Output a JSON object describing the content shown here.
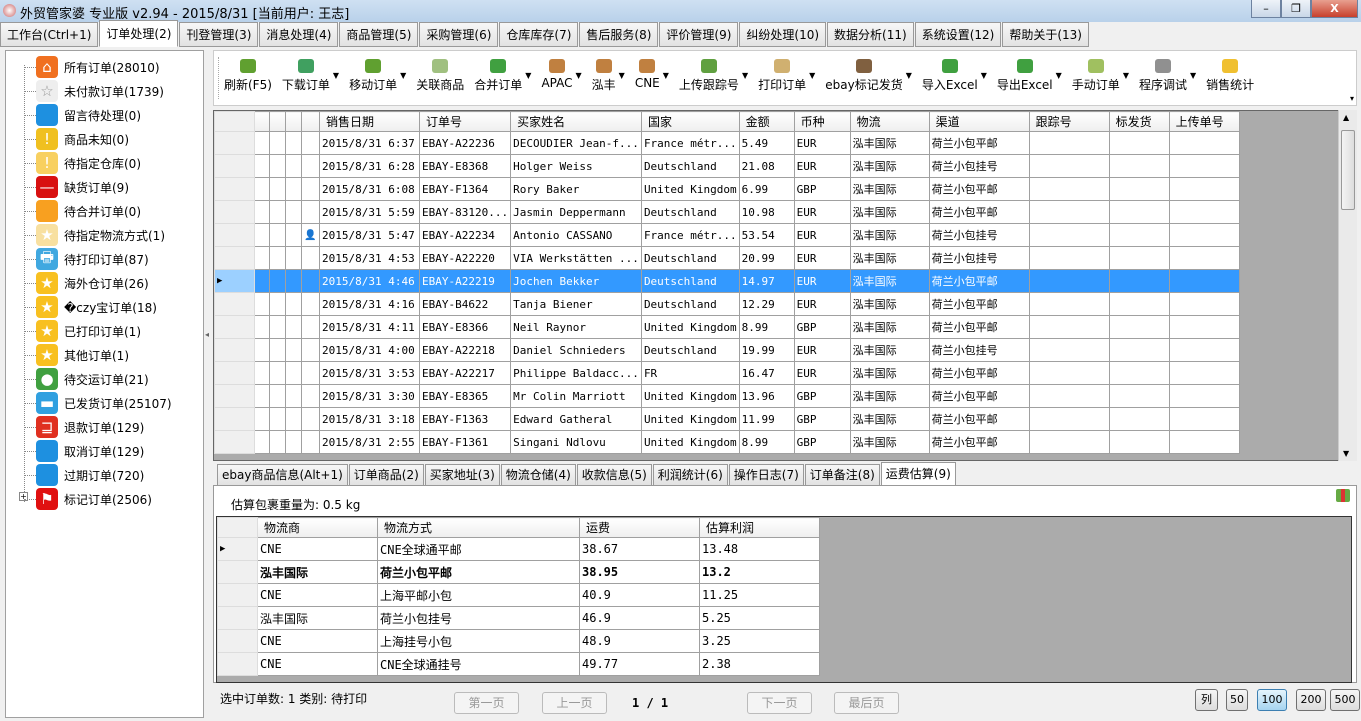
{
  "window": {
    "title": "外贸管家婆 专业版 v2.94 - 2015/8/31 [当前用户: 王志]",
    "minimize": "–",
    "maximize": "❐",
    "close": "X"
  },
  "tabs": [
    "工作台(Ctrl+1)",
    "订单处理(2)",
    "刊登管理(3)",
    "消息处理(4)",
    "商品管理(5)",
    "采购管理(6)",
    "仓库库存(7)",
    "售后服务(8)",
    "评价管理(9)",
    "纠纷处理(10)",
    "数据分析(11)",
    "系统设置(12)",
    "帮助关于(13)"
  ],
  "active_tab": 1,
  "sidebar": [
    {
      "label": "所有订单(28010)",
      "icon": "home-icon",
      "color": "#f07020",
      "glyph": "⌂"
    },
    {
      "label": "未付款订单(1739)",
      "icon": "star-outline-icon",
      "color": "#eeeeee",
      "glyph": "☆"
    },
    {
      "label": "留言待处理(0)",
      "icon": "speech-bubble-icon",
      "color": "#1e90e0",
      "glyph": ""
    },
    {
      "label": "商品未知(0)",
      "icon": "warning-icon",
      "color": "#f0c020",
      "glyph": "!"
    },
    {
      "label": "待指定仓库(0)",
      "icon": "warning-outline-icon",
      "color": "#f8d060",
      "glyph": "!"
    },
    {
      "label": "缺货订单(9)",
      "icon": "no-entry-icon",
      "color": "#d81010",
      "glyph": "—"
    },
    {
      "label": "待合并订单(0)",
      "icon": "folder-icon",
      "color": "#f8a020",
      "glyph": ""
    },
    {
      "label": "待指定物流方式(1)",
      "icon": "half-star-icon",
      "color": "#f8e0a0",
      "glyph": "★"
    },
    {
      "label": "待打印订单(87)",
      "icon": "printer-icon",
      "color": "#40a8e0",
      "glyph": "🖶"
    },
    {
      "label": "海外仓订单(26)",
      "icon": "star-icon",
      "color": "#f8c020",
      "glyph": "★"
    },
    {
      "label": "�czy宝订单(18)",
      "icon": "star-icon",
      "color": "#f8c020",
      "glyph": "★"
    },
    {
      "label": "已打印订单(1)",
      "icon": "star-icon",
      "color": "#f8c020",
      "glyph": "★"
    },
    {
      "label": "其他订单(1)",
      "icon": "star-icon",
      "color": "#f8c020",
      "glyph": "★"
    },
    {
      "label": "待交运订单(21)",
      "icon": "person-icon",
      "color": "#40a040",
      "glyph": "●"
    },
    {
      "label": "已发货订单(25107)",
      "icon": "truck-icon",
      "color": "#30a0e0",
      "glyph": "▬"
    },
    {
      "label": "退款订单(129)",
      "icon": "refund-icon",
      "color": "#e03020",
      "glyph": "⊒"
    },
    {
      "label": "取消订单(129)",
      "icon": "trash-icon",
      "color": "#1e90e0",
      "glyph": ""
    },
    {
      "label": "过期订单(720)",
      "icon": "trash-icon",
      "color": "#1e90e0",
      "glyph": ""
    },
    {
      "label": "标记订单(2506)",
      "icon": "flag-icon",
      "color": "#e01010",
      "glyph": "⚑"
    }
  ],
  "toolbar": [
    {
      "label": "刷新(F5)",
      "icon": "refresh-icon",
      "color": "#60a030",
      "dd": false
    },
    {
      "label": "下载订单",
      "icon": "globe-icon",
      "color": "#40a060",
      "dd": true
    },
    {
      "label": "移动订单",
      "icon": "arrow-right-icon",
      "color": "#60a030",
      "dd": true
    },
    {
      "label": "关联商品",
      "icon": "link-icon",
      "color": "#a0c080",
      "dd": false
    },
    {
      "label": "合并订单",
      "icon": "merge-icon",
      "color": "#40a040",
      "dd": true
    },
    {
      "label": "APAC",
      "icon": "truck-icon",
      "color": "#c08040",
      "dd": true
    },
    {
      "label": "泓丰",
      "icon": "truck-icon",
      "color": "#c08040",
      "dd": true
    },
    {
      "label": "CNE",
      "icon": "truck-icon",
      "color": "#c08040",
      "dd": true
    },
    {
      "label": "上传跟踪号",
      "icon": "upload-icon",
      "color": "#60a040",
      "dd": true
    },
    {
      "label": "打印订单",
      "icon": "clipboard-icon",
      "color": "#d0b070",
      "dd": true
    },
    {
      "label": "ebay标记发货",
      "icon": "truck-icon",
      "color": "#806040",
      "dd": true
    },
    {
      "label": "导入Excel",
      "icon": "excel-icon",
      "color": "#40a040",
      "dd": true
    },
    {
      "label": "导出Excel",
      "icon": "excel-icon",
      "color": "#40a040",
      "dd": true
    },
    {
      "label": "手动订单",
      "icon": "edit-icon",
      "color": "#a0c060",
      "dd": true
    },
    {
      "label": "程序调试",
      "icon": "gear-icon",
      "color": "#909090",
      "dd": true
    },
    {
      "label": "销售统计",
      "icon": "coins-icon",
      "color": "#f0c030",
      "dd": false
    }
  ],
  "grid": {
    "columns": [
      "",
      "",
      "",
      "",
      "销售日期",
      "订单号",
      "买家姓名",
      "国家",
      "金额",
      "币种",
      "物流",
      "渠道",
      "跟踪号",
      "标发货",
      "上传单号"
    ],
    "selected_row": 6,
    "rows": [
      [
        "2015/8/31 6:37",
        "EBAY-A22236",
        "DECOUDIER Jean-f...",
        "France métr...",
        "5.49",
        "EUR",
        "泓丰国际",
        "荷兰小包平邮"
      ],
      [
        "2015/8/31 6:28",
        "EBAY-E8368",
        "Holger Weiss",
        "Deutschland",
        "21.08",
        "EUR",
        "泓丰国际",
        "荷兰小包挂号"
      ],
      [
        "2015/8/31 6:08",
        "EBAY-F1364",
        "Rory Baker",
        "United Kingdom",
        "6.99",
        "GBP",
        "泓丰国际",
        "荷兰小包平邮"
      ],
      [
        "2015/8/31 5:59",
        "EBAY-83120...",
        "Jasmin Deppermann",
        "Deutschland",
        "10.98",
        "EUR",
        "泓丰国际",
        "荷兰小包平邮"
      ],
      [
        "2015/8/31 5:47",
        "EBAY-A22234",
        "Antonio CASSANO",
        "France métr...",
        "53.54",
        "EUR",
        "泓丰国际",
        "荷兰小包挂号"
      ],
      [
        "2015/8/31 4:53",
        "EBAY-A22220",
        "VIA Werkstätten ...",
        "Deutschland",
        "20.99",
        "EUR",
        "泓丰国际",
        "荷兰小包挂号"
      ],
      [
        "2015/8/31 4:46",
        "EBAY-A22219",
        "Jochen Bekker",
        "Deutschland",
        "14.97",
        "EUR",
        "泓丰国际",
        "荷兰小包平邮"
      ],
      [
        "2015/8/31 4:16",
        "EBAY-B4622",
        "Tanja Biener",
        "Deutschland",
        "12.29",
        "EUR",
        "泓丰国际",
        "荷兰小包平邮"
      ],
      [
        "2015/8/31 4:11",
        "EBAY-E8366",
        "Neil Raynor",
        "United Kingdom",
        "8.99",
        "GBP",
        "泓丰国际",
        "荷兰小包平邮"
      ],
      [
        "2015/8/31 4:00",
        "EBAY-A22218",
        "Daniel Schnieders",
        "Deutschland",
        "19.99",
        "EUR",
        "泓丰国际",
        "荷兰小包挂号"
      ],
      [
        "2015/8/31 3:53",
        "EBAY-A22217",
        "Philippe Baldacc...",
        "FR",
        "16.47",
        "EUR",
        "泓丰国际",
        "荷兰小包平邮"
      ],
      [
        "2015/8/31 3:30",
        "EBAY-E8365",
        "Mr Colin Marriott",
        "United Kingdom",
        "13.96",
        "GBP",
        "泓丰国际",
        "荷兰小包平邮"
      ],
      [
        "2015/8/31 3:18",
        "EBAY-F1363",
        "Edward Gatheral",
        "United Kingdom",
        "11.99",
        "GBP",
        "泓丰国际",
        "荷兰小包平邮"
      ],
      [
        "2015/8/31 2:55",
        "EBAY-F1361",
        "Singani Ndlovu",
        "United Kingdom",
        "8.99",
        "GBP",
        "泓丰国际",
        "荷兰小包平邮"
      ]
    ]
  },
  "bottom_tabs": [
    "ebay商品信息(Alt+1)",
    "订单商品(2)",
    "买家地址(3)",
    "物流仓储(4)",
    "收款信息(5)",
    "利润统计(6)",
    "操作日志(7)",
    "订单备注(8)",
    "运费估算(9)"
  ],
  "bottom_active": 8,
  "estimate": {
    "weight_text": "估算包裹重量为: 0.5 kg",
    "columns": [
      "物流商",
      "物流方式",
      "运费",
      "估算利润"
    ],
    "bold_row": 1,
    "rows": [
      [
        "CNE",
        "CNE全球通平邮",
        "38.67",
        "13.48"
      ],
      [
        "泓丰国际",
        "荷兰小包平邮",
        "38.95",
        "13.2"
      ],
      [
        "CNE",
        "上海平邮小包",
        "40.9",
        "11.25"
      ],
      [
        "泓丰国际",
        "荷兰小包挂号",
        "46.9",
        "5.25"
      ],
      [
        "CNE",
        "上海挂号小包",
        "48.9",
        "3.25"
      ],
      [
        "CNE",
        "CNE全球通挂号",
        "49.77",
        "2.38"
      ]
    ]
  },
  "status": {
    "text": "选中订单数: 1 类别: 待打印",
    "first": "第一页",
    "prev": "上一页",
    "page": "1 / 1",
    "next": "下一页",
    "last": "最后页",
    "col_btn": "列",
    "sizes": [
      "50",
      "100",
      "200",
      "500"
    ],
    "active_size": "100"
  }
}
